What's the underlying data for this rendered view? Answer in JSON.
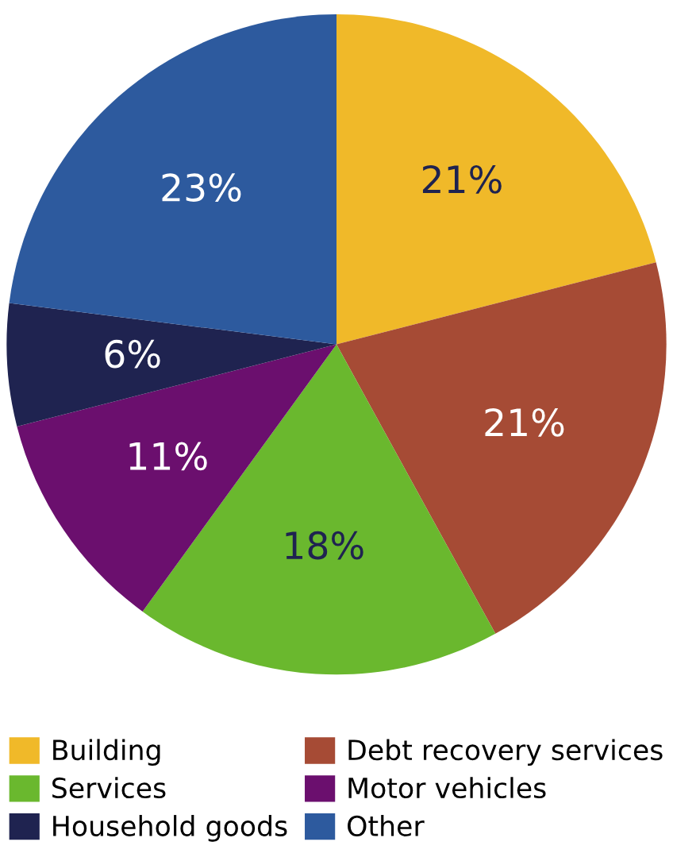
{
  "chart_data": {
    "type": "pie",
    "categories": [
      "Building",
      "Debt recovery services",
      "Services",
      "Motor vehicles",
      "Household goods",
      "Other"
    ],
    "values": [
      21,
      21,
      18,
      11,
      6,
      23
    ],
    "colors": [
      "#f0b929",
      "#a64b35",
      "#6ab82e",
      "#6b0f6e",
      "#1f2350",
      "#2d5a9e"
    ],
    "value_labels": [
      "21%",
      "21%",
      "18%",
      "11%",
      "6%",
      "23%"
    ],
    "legend": "bottom"
  }
}
